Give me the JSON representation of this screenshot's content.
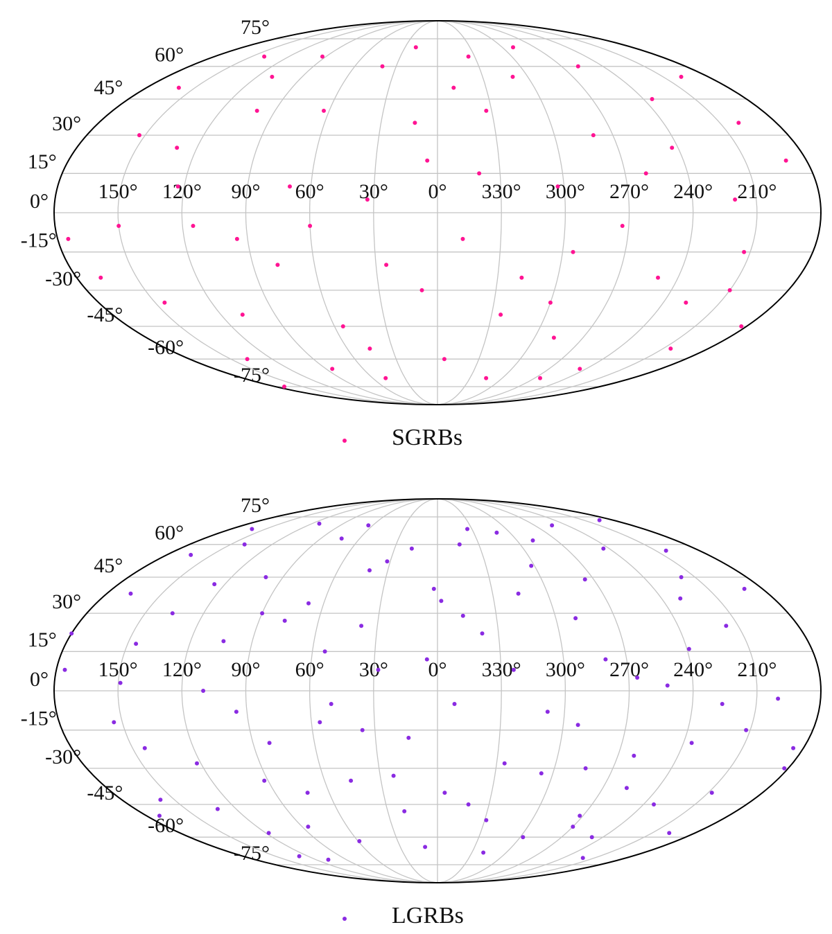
{
  "chart_data": [
    {
      "type": "scatter",
      "projection": "mollweide",
      "grid": true,
      "xlim": [
        0,
        360
      ],
      "ylim": [
        -90,
        90
      ],
      "xticks": [
        {
          "value": 150,
          "label": "150°"
        },
        {
          "value": 120,
          "label": "120°"
        },
        {
          "value": 90,
          "label": "90°"
        },
        {
          "value": 60,
          "label": "60°"
        },
        {
          "value": 30,
          "label": "30°"
        },
        {
          "value": 0,
          "label": "0°"
        },
        {
          "value": 330,
          "label": "330°"
        },
        {
          "value": 300,
          "label": "300°"
        },
        {
          "value": 270,
          "label": "270°"
        },
        {
          "value": 240,
          "label": "240°"
        },
        {
          "value": 210,
          "label": "210°"
        }
      ],
      "yticks": [
        {
          "value": 75,
          "label": "75°"
        },
        {
          "value": 60,
          "label": "60°"
        },
        {
          "value": 45,
          "label": "45°"
        },
        {
          "value": 30,
          "label": "30°"
        },
        {
          "value": 15,
          "label": "15°"
        },
        {
          "value": 0,
          "label": "0°"
        },
        {
          "value": -15,
          "label": "-15°"
        },
        {
          "value": -30,
          "label": "-30°"
        },
        {
          "value": -45,
          "label": "-45°"
        },
        {
          "value": -60,
          "label": "-60°"
        },
        {
          "value": -75,
          "label": "-75°"
        }
      ],
      "series": [
        {
          "name": "SGRBs",
          "color": "#ff1493",
          "x": [
            12,
            25,
            40,
            55,
            70,
            85,
            100,
            115,
            130,
            145,
            160,
            175,
            190,
            205,
            220,
            235,
            250,
            265,
            280,
            295,
            310,
            325,
            340,
            355,
            8,
            33,
            48,
            63,
            78,
            93,
            108,
            123,
            138,
            153,
            168,
            183,
            198,
            213,
            228,
            243,
            258,
            273,
            288,
            303,
            318,
            333,
            348,
            20,
            45,
            95,
            140,
            170,
            200,
            245,
            290,
            315,
            350,
            5,
            60,
            110,
            150,
            210,
            260,
            300,
            335
          ],
          "y": [
            35,
            -20,
            60,
            -45,
            10,
            -65,
            40,
            -5,
            25,
            -35,
            50,
            -10,
            20,
            -55,
            5,
            45,
            -25,
            -70,
            30,
            -15,
            55,
            -40,
            15,
            -60,
            -30,
            5,
            -70,
            40,
            -20,
            65,
            -40,
            10,
            -60,
            30,
            -25,
            -45,
            55,
            -15,
            -35,
            25,
            60,
            -5,
            -50,
            10,
            -25,
            40,
            -10,
            70,
            -55,
            -10,
            65,
            -75,
            35,
            -65,
            70,
            -70,
            50,
            20,
            -5,
            55,
            -5,
            -30,
            15,
            -35,
            65
          ]
        }
      ]
    },
    {
      "type": "scatter",
      "projection": "mollweide",
      "grid": true,
      "xlim": [
        0,
        360
      ],
      "ylim": [
        -90,
        90
      ],
      "xticks": [
        {
          "value": 150,
          "label": "150°"
        },
        {
          "value": 120,
          "label": "120°"
        },
        {
          "value": 90,
          "label": "90°"
        },
        {
          "value": 60,
          "label": "60°"
        },
        {
          "value": 30,
          "label": "30°"
        },
        {
          "value": 0,
          "label": "0°"
        },
        {
          "value": 330,
          "label": "330°"
        },
        {
          "value": 300,
          "label": "300°"
        },
        {
          "value": 270,
          "label": "270°"
        },
        {
          "value": 240,
          "label": "240°"
        },
        {
          "value": 210,
          "label": "210°"
        }
      ],
      "yticks": [
        {
          "value": 75,
          "label": "75°"
        },
        {
          "value": 60,
          "label": "60°"
        },
        {
          "value": 45,
          "label": "45°"
        },
        {
          "value": 30,
          "label": "30°"
        },
        {
          "value": 15,
          "label": "15°"
        },
        {
          "value": 0,
          "label": "0°"
        },
        {
          "value": -15,
          "label": "-15°"
        },
        {
          "value": -30,
          "label": "-30°"
        },
        {
          "value": -45,
          "label": "-45°"
        },
        {
          "value": -60,
          "label": "-60°"
        },
        {
          "value": -75,
          "label": "-75°"
        }
      ],
      "series": [
        {
          "name": "LGRBs",
          "color": "#8a2be2",
          "x": [
            5,
            23,
            41,
            59,
            77,
            95,
            113,
            131,
            149,
            167,
            185,
            203,
            221,
            239,
            257,
            275,
            293,
            311,
            329,
            347,
            14,
            32,
            50,
            68,
            86,
            104,
            122,
            140,
            158,
            176,
            194,
            212,
            230,
            248,
            266,
            284,
            302,
            320,
            338,
            356,
            2,
            20,
            38,
            56,
            74,
            92,
            110,
            128,
            146,
            164,
            182,
            200,
            218,
            236,
            254,
            272,
            290,
            308,
            326,
            344,
            10,
            28,
            46,
            64,
            82,
            100,
            118,
            136,
            154,
            172,
            190,
            208,
            226,
            244,
            262,
            280,
            298,
            316,
            334,
            352,
            18,
            36,
            54,
            72,
            90,
            108,
            126,
            144,
            162,
            180,
            198,
            216,
            234,
            252,
            270,
            288,
            306,
            324,
            342,
            358
          ],
          "y": [
            12,
            -33,
            48,
            -62,
            27,
            -8,
            71,
            -47,
            3,
            38,
            -22,
            57,
            -71,
            16,
            -38,
            44,
            -13,
            66,
            -52,
            29,
            -18,
            52,
            -5,
            34,
            -55,
            19,
            -28,
            60,
            -43,
            8,
            73,
            -15,
            36,
            -60,
            5,
            -30,
            50,
            -68,
            22,
            -40,
            40,
            -48,
            25,
            -12,
            63,
            -35,
            0,
            -70,
            18,
            55,
            -30,
            -3,
            45,
            -20,
            70,
            -50,
            28,
            -8,
            -28,
            60,
            -65,
            8,
            -35,
            70,
            -20,
            45,
            -58,
            30,
            -12,
            -50,
            40,
            -40,
            -5,
            58,
            -25,
            12,
            -60,
            38,
            68,
            -5,
            58,
            -15,
            15,
            -40,
            30,
            -72,
            42,
            -22,
            68,
            22,
            -58,
            25,
            -45,
            2,
            -55,
            62,
            -32,
            8,
            -45,
            35
          ]
        }
      ]
    }
  ]
}
